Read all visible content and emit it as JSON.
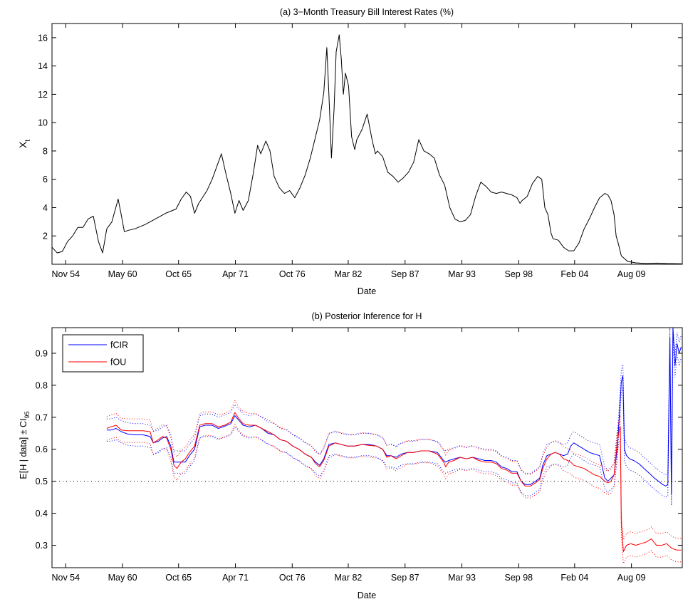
{
  "chart_data": [
    {
      "type": "line",
      "title": "(a) 3−Month Treasury Bill Interest Rates (%)",
      "xlabel": "Date",
      "ylabel": "X",
      "ylabel_sub": "t",
      "xlim": [
        1953.5,
        2014.5
      ],
      "ylim": [
        0,
        17
      ],
      "grid": false,
      "x_ticks": [
        {
          "x": 1954.83,
          "label": "Nov 54"
        },
        {
          "x": 1960.33,
          "label": "May 60"
        },
        {
          "x": 1965.75,
          "label": "Oct 65"
        },
        {
          "x": 1971.25,
          "label": "Apr 71"
        },
        {
          "x": 1976.75,
          "label": "Oct 76"
        },
        {
          "x": 1982.17,
          "label": "Mar 82"
        },
        {
          "x": 1987.67,
          "label": "Sep 87"
        },
        {
          "x": 1993.17,
          "label": "Mar 93"
        },
        {
          "x": 1998.67,
          "label": "Sep 98"
        },
        {
          "x": 2004.08,
          "label": "Feb 04"
        },
        {
          "x": 2009.58,
          "label": "Aug 09"
        }
      ],
      "y_ticks": [
        2,
        4,
        6,
        8,
        10,
        12,
        14,
        16
      ],
      "series": [
        {
          "color": "#000000",
          "x": [
            1953.5,
            1954.0,
            1954.5,
            1955.0,
            1955.5,
            1956.0,
            1956.5,
            1957.0,
            1957.5,
            1958.0,
            1958.4,
            1958.8,
            1959.3,
            1959.9,
            1960.2,
            1960.5,
            1960.9,
            1961.5,
            1962.5,
            1963.5,
            1964.5,
            1965.5,
            1966.0,
            1966.5,
            1966.9,
            1967.3,
            1967.7,
            1968.5,
            1969.0,
            1969.5,
            1969.9,
            1970.3,
            1970.8,
            1971.2,
            1971.6,
            1972.0,
            1972.5,
            1973.0,
            1973.4,
            1973.7,
            1974.2,
            1974.6,
            1975.0,
            1975.5,
            1976.0,
            1976.5,
            1977.0,
            1977.5,
            1978.0,
            1978.5,
            1979.0,
            1979.4,
            1979.8,
            1980.1,
            1980.3,
            1980.55,
            1980.8,
            1981.0,
            1981.3,
            1981.5,
            1981.7,
            1981.9,
            1982.2,
            1982.5,
            1982.8,
            1983.0,
            1983.5,
            1984.0,
            1984.5,
            1984.8,
            1985.0,
            1985.5,
            1986.0,
            1986.5,
            1987.0,
            1987.5,
            1988.0,
            1988.5,
            1989.0,
            1989.5,
            1990.0,
            1990.5,
            1991.0,
            1991.5,
            1992.0,
            1992.5,
            1993.0,
            1993.5,
            1994.0,
            1994.5,
            1995.0,
            1995.5,
            1996.0,
            1996.5,
            1997.0,
            1997.5,
            1998.0,
            1998.5,
            1998.8,
            1999.0,
            1999.5,
            2000.0,
            2000.5,
            2000.9,
            2001.2,
            2001.5,
            2001.8,
            2002.0,
            2002.5,
            2003.0,
            2003.5,
            2004.0,
            2004.5,
            2005.0,
            2005.5,
            2006.0,
            2006.5,
            2007.0,
            2007.3,
            2007.6,
            2007.9,
            2008.1,
            2008.3,
            2008.6,
            2008.9,
            2009.2,
            2009.6,
            2010.0,
            2011.0,
            2012.0,
            2013.0,
            2014.0,
            2014.5
          ],
          "y": [
            1.2,
            0.8,
            0.9,
            1.6,
            2.0,
            2.6,
            2.6,
            3.2,
            3.4,
            1.6,
            0.8,
            2.5,
            3.0,
            4.6,
            3.5,
            2.3,
            2.4,
            2.5,
            2.8,
            3.2,
            3.6,
            3.9,
            4.6,
            5.1,
            4.8,
            3.6,
            4.3,
            5.2,
            6.0,
            7.0,
            7.8,
            6.5,
            5.0,
            3.6,
            4.5,
            3.8,
            4.5,
            6.5,
            8.4,
            7.8,
            8.7,
            8.0,
            6.2,
            5.4,
            5.0,
            5.2,
            4.7,
            5.4,
            6.3,
            7.5,
            9.0,
            10.2,
            12.1,
            15.3,
            12.0,
            7.5,
            11.0,
            15.0,
            16.2,
            14.5,
            12.0,
            13.5,
            12.6,
            9.0,
            8.1,
            8.8,
            9.5,
            10.6,
            8.7,
            7.8,
            8.0,
            7.6,
            6.5,
            6.2,
            5.8,
            6.1,
            6.5,
            7.2,
            8.8,
            8.0,
            7.8,
            7.5,
            6.3,
            5.6,
            4.0,
            3.2,
            3.0,
            3.1,
            3.5,
            4.8,
            5.8,
            5.5,
            5.1,
            5.0,
            5.1,
            5.0,
            4.9,
            4.7,
            4.3,
            4.5,
            4.8,
            5.7,
            6.2,
            6.0,
            4.0,
            3.5,
            2.2,
            1.8,
            1.7,
            1.2,
            0.95,
            0.95,
            1.5,
            2.5,
            3.2,
            4.0,
            4.7,
            5.0,
            4.9,
            4.5,
            3.5,
            2.0,
            1.5,
            0.6,
            0.4,
            0.2,
            0.15,
            0.1,
            0.05,
            0.08,
            0.05,
            0.04,
            0.03
          ]
        }
      ]
    },
    {
      "type": "line",
      "title": "(b) Posterior Inference for H",
      "xlabel": "Date",
      "ylabel": "E[H | data] ± CI",
      "ylabel_sub": "95",
      "xlim": [
        1953.5,
        2014.5
      ],
      "ylim": [
        0.23,
        0.98
      ],
      "grid": false,
      "legend": {
        "placement": "top-left",
        "entries": [
          "fCIR",
          "fOU"
        ]
      },
      "reference_line": {
        "y": 0.5,
        "style": "dotted"
      },
      "x_ticks": [
        {
          "x": 1954.83,
          "label": "Nov 54"
        },
        {
          "x": 1960.33,
          "label": "May 60"
        },
        {
          "x": 1965.75,
          "label": "Oct 65"
        },
        {
          "x": 1971.25,
          "label": "Apr 71"
        },
        {
          "x": 1976.75,
          "label": "Oct 76"
        },
        {
          "x": 1982.17,
          "label": "Mar 82"
        },
        {
          "x": 1987.67,
          "label": "Sep 87"
        },
        {
          "x": 1993.17,
          "label": "Mar 93"
        },
        {
          "x": 1998.67,
          "label": "Sep 98"
        },
        {
          "x": 2004.08,
          "label": "Feb 04"
        },
        {
          "x": 2009.58,
          "label": "Aug 09"
        }
      ],
      "y_ticks": [
        0.3,
        0.4,
        0.5,
        0.6,
        0.7,
        0.8,
        0.9
      ],
      "series": [
        {
          "name": "fCIR",
          "color": "#0000ff",
          "ci_halfwidth": 0.035,
          "x": [
            1958.8,
            1959.2,
            1959.7,
            1960.2,
            1960.8,
            1961.5,
            1962.3,
            1963.0,
            1963.3,
            1963.8,
            1964.2,
            1964.6,
            1965.0,
            1965.3,
            1965.6,
            1966.0,
            1966.4,
            1966.8,
            1967.3,
            1967.8,
            1968.3,
            1969.0,
            1969.6,
            1970.2,
            1970.8,
            1971.2,
            1971.6,
            1972.0,
            1972.6,
            1973.2,
            1973.8,
            1974.4,
            1975.0,
            1975.6,
            1976.2,
            1976.8,
            1977.4,
            1978.0,
            1978.6,
            1979.0,
            1979.4,
            1979.8,
            1980.3,
            1980.9,
            1981.5,
            1982.1,
            1982.8,
            1983.5,
            1984.2,
            1984.9,
            1985.5,
            1985.9,
            1986.3,
            1986.8,
            1987.3,
            1987.9,
            1988.5,
            1989.2,
            1990.0,
            1990.8,
            1991.4,
            1991.6,
            1991.9,
            1992.4,
            1993.0,
            1993.6,
            1994.2,
            1994.8,
            1995.4,
            1996.0,
            1996.5,
            1997.0,
            1997.5,
            1998.0,
            1998.5,
            1998.9,
            1999.3,
            1999.8,
            2000.3,
            2000.7,
            2001.0,
            2001.4,
            2001.8,
            2002.2,
            2002.6,
            2003.0,
            2003.4,
            2003.7,
            2004.0,
            2004.5,
            2005.0,
            2005.5,
            2006.0,
            2006.5,
            2007.0,
            2007.3,
            2007.6,
            2007.9,
            2008.2,
            2008.4,
            2008.6,
            2008.75,
            2008.9,
            2009.1,
            2009.4,
            2009.8,
            2010.3,
            2010.8,
            2011.3,
            2011.8,
            2012.2,
            2012.6,
            2012.9,
            2013.1,
            2013.3,
            2013.45,
            2013.6,
            2013.8,
            2014.0,
            2014.2,
            2014.4
          ],
          "y": [
            0.66,
            0.66,
            0.665,
            0.655,
            0.648,
            0.645,
            0.645,
            0.64,
            0.62,
            0.625,
            0.635,
            0.64,
            0.61,
            0.56,
            0.56,
            0.56,
            0.56,
            0.58,
            0.6,
            0.67,
            0.675,
            0.675,
            0.665,
            0.672,
            0.68,
            0.705,
            0.69,
            0.675,
            0.67,
            0.675,
            0.665,
            0.65,
            0.645,
            0.63,
            0.625,
            0.61,
            0.6,
            0.585,
            0.575,
            0.56,
            0.55,
            0.57,
            0.615,
            0.62,
            0.615,
            0.61,
            0.61,
            0.615,
            0.615,
            0.61,
            0.6,
            0.58,
            0.58,
            0.575,
            0.585,
            0.59,
            0.59,
            0.595,
            0.595,
            0.59,
            0.565,
            0.56,
            0.565,
            0.57,
            0.575,
            0.57,
            0.575,
            0.57,
            0.565,
            0.565,
            0.56,
            0.545,
            0.54,
            0.53,
            0.53,
            0.5,
            0.49,
            0.49,
            0.5,
            0.51,
            0.55,
            0.58,
            0.585,
            0.59,
            0.585,
            0.58,
            0.585,
            0.61,
            0.62,
            0.61,
            0.6,
            0.59,
            0.585,
            0.58,
            0.51,
            0.5,
            0.51,
            0.52,
            0.6,
            0.7,
            0.81,
            0.83,
            0.6,
            0.58,
            0.57,
            0.565,
            0.555,
            0.54,
            0.525,
            0.51,
            0.5,
            0.49,
            0.485,
            0.49,
            0.95,
            0.46,
            0.98,
            0.86,
            0.93,
            0.9,
            0.92
          ]
        },
        {
          "name": "fOU",
          "color": "#ff0000",
          "ci_halfwidth": 0.037,
          "x": [
            1958.8,
            1959.2,
            1959.7,
            1960.2,
            1960.8,
            1961.5,
            1962.3,
            1963.0,
            1963.3,
            1963.8,
            1964.2,
            1964.6,
            1965.0,
            1965.3,
            1965.6,
            1966.0,
            1966.4,
            1966.8,
            1967.3,
            1967.8,
            1968.3,
            1969.0,
            1969.6,
            1970.2,
            1970.8,
            1971.2,
            1971.6,
            1972.0,
            1972.6,
            1973.2,
            1973.8,
            1974.4,
            1975.0,
            1975.6,
            1976.2,
            1976.8,
            1977.4,
            1978.0,
            1978.6,
            1979.0,
            1979.4,
            1979.8,
            1980.3,
            1980.9,
            1981.5,
            1982.1,
            1982.8,
            1983.5,
            1984.2,
            1984.9,
            1985.5,
            1985.9,
            1986.3,
            1986.8,
            1987.3,
            1987.9,
            1988.5,
            1989.2,
            1990.0,
            1990.8,
            1991.4,
            1991.6,
            1991.9,
            1992.4,
            1993.0,
            1993.6,
            1994.2,
            1994.8,
            1995.4,
            1996.0,
            1996.5,
            1997.0,
            1997.5,
            1998.0,
            1998.5,
            1998.9,
            1999.3,
            1999.8,
            2000.3,
            2000.7,
            2001.0,
            2001.4,
            2001.8,
            2002.2,
            2002.6,
            2003.0,
            2003.4,
            2003.7,
            2004.0,
            2004.5,
            2005.0,
            2005.5,
            2006.0,
            2006.5,
            2007.0,
            2007.3,
            2007.6,
            2007.9,
            2008.2,
            2008.4,
            2008.5,
            2008.6,
            2008.8,
            2009.1,
            2009.5,
            2010.0,
            2010.5,
            2011.0,
            2011.5,
            2012.0,
            2012.5,
            2013.0,
            2013.5,
            2014.0,
            2014.4
          ],
          "y": [
            0.665,
            0.67,
            0.675,
            0.66,
            0.658,
            0.658,
            0.658,
            0.655,
            0.62,
            0.63,
            0.64,
            0.635,
            0.6,
            0.55,
            0.54,
            0.56,
            0.57,
            0.59,
            0.61,
            0.675,
            0.68,
            0.68,
            0.67,
            0.675,
            0.685,
            0.715,
            0.695,
            0.68,
            0.675,
            0.675,
            0.665,
            0.655,
            0.645,
            0.63,
            0.625,
            0.61,
            0.6,
            0.585,
            0.575,
            0.555,
            0.545,
            0.565,
            0.61,
            0.62,
            0.615,
            0.61,
            0.61,
            0.615,
            0.612,
            0.61,
            0.6,
            0.575,
            0.58,
            0.57,
            0.58,
            0.59,
            0.59,
            0.595,
            0.595,
            0.585,
            0.56,
            0.545,
            0.56,
            0.565,
            0.575,
            0.57,
            0.575,
            0.565,
            0.56,
            0.56,
            0.555,
            0.54,
            0.535,
            0.525,
            0.525,
            0.5,
            0.485,
            0.485,
            0.495,
            0.505,
            0.54,
            0.57,
            0.585,
            0.59,
            0.585,
            0.57,
            0.565,
            0.56,
            0.55,
            0.545,
            0.54,
            0.53,
            0.52,
            0.515,
            0.5,
            0.495,
            0.5,
            0.52,
            0.62,
            0.66,
            0.67,
            0.37,
            0.28,
            0.3,
            0.305,
            0.3,
            0.305,
            0.31,
            0.32,
            0.3,
            0.3,
            0.305,
            0.29,
            0.285,
            0.285
          ]
        }
      ]
    }
  ]
}
